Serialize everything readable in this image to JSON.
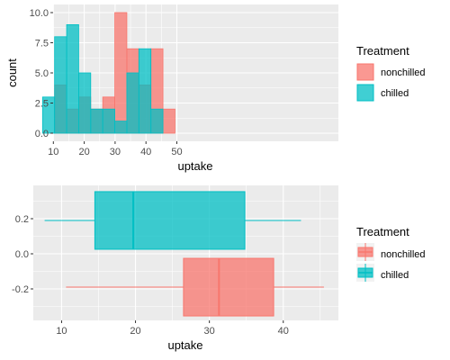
{
  "colors": {
    "nonchilled": "#F8766D",
    "chilled": "#00BFC4",
    "panel": "#EBEBEB",
    "grid": "#FFFFFF",
    "tick_text": "#4D4D4D"
  },
  "chart_data": [
    {
      "type": "histogram",
      "xlabel": "uptake",
      "ylabel": "count",
      "xlim": [
        5,
        50
      ],
      "ylim": [
        0,
        10
      ],
      "x_ticks": [
        "10",
        "20",
        "30",
        "40",
        "50"
      ],
      "y_ticks": [
        "0.0",
        "2.5",
        "5.0",
        "7.5",
        "10.0"
      ],
      "grid": true,
      "legend": {
        "title": "Treatment",
        "placement": "right",
        "entries": [
          "nonchilled",
          "chilled"
        ]
      },
      "bins": [
        {
          "start": 6.5,
          "end": 10.4,
          "nonchilled": 0,
          "chilled": 3
        },
        {
          "start": 10.4,
          "end": 14.3,
          "nonchilled": 4,
          "chilled": 8
        },
        {
          "start": 14.3,
          "end": 18.2,
          "nonchilled": 2,
          "chilled": 9
        },
        {
          "start": 18.2,
          "end": 22.1,
          "nonchilled": 3,
          "chilled": 5
        },
        {
          "start": 22.1,
          "end": 26.0,
          "nonchilled": 2,
          "chilled": 2
        },
        {
          "start": 26.0,
          "end": 29.9,
          "nonchilled": 3,
          "chilled": 2
        },
        {
          "start": 29.9,
          "end": 33.8,
          "nonchilled": 10,
          "chilled": 1
        },
        {
          "start": 33.8,
          "end": 37.7,
          "nonchilled": 7,
          "chilled": 5
        },
        {
          "start": 37.7,
          "end": 41.6,
          "nonchilled": 4,
          "chilled": 7
        },
        {
          "start": 41.6,
          "end": 45.5,
          "nonchilled": 7,
          "chilled": 2
        },
        {
          "start": 45.5,
          "end": 49.4,
          "nonchilled": 2,
          "chilled": 0
        }
      ]
    },
    {
      "type": "boxplot",
      "orientation": "horizontal",
      "xlabel": "uptake",
      "xlim": [
        6,
        47
      ],
      "ylim": [
        -0.4,
        0.3
      ],
      "x_ticks": [
        "10",
        "20",
        "30",
        "40"
      ],
      "y_ticks": [
        "0.2",
        "0.0",
        "-0.2"
      ],
      "grid": true,
      "legend": {
        "title": "Treatment",
        "placement": "right",
        "entries": [
          "nonchilled",
          "chilled"
        ]
      },
      "boxes": [
        {
          "group": "nonchilled",
          "position": -0.19,
          "whisker_low": 10.6,
          "q1": 26.5,
          "median": 31.3,
          "q3": 38.7,
          "whisker_high": 45.5
        },
        {
          "group": "chilled",
          "position": 0.19,
          "whisker_low": 7.7,
          "q1": 14.5,
          "median": 19.7,
          "q3": 34.8,
          "whisker_high": 42.4
        }
      ]
    }
  ]
}
